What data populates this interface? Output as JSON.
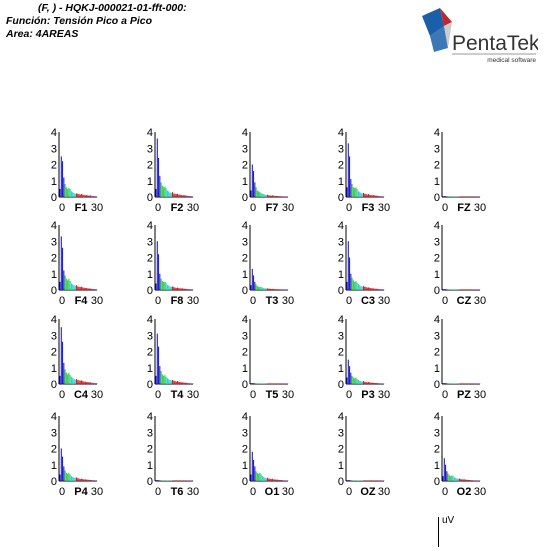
{
  "header": {
    "line1": "(F, ) - HQKJ-000021-01-fft-000:",
    "line2": "Función: Tensión Pico a Pico",
    "line3": "Area: 4AREAS"
  },
  "logo": {
    "name": "PentaTek",
    "tagline": "medical software",
    "colors": {
      "blue": "#1b5fa8",
      "red": "#c0282d",
      "text": "#333333"
    }
  },
  "unit_label": "uV",
  "chart_data": {
    "type": "bar",
    "x_ticks": [
      "0",
      "30"
    ],
    "y_ticks": [
      "0",
      "1",
      "2",
      "3",
      "4"
    ],
    "xlim": [
      0,
      30
    ],
    "ylim": [
      0,
      4
    ],
    "band_colors": {
      "delta": "#1a1acc",
      "theta": "#2ecc40",
      "alpha": "#33cccc",
      "beta": "#cc2222",
      "gamma": "#9933cc"
    },
    "panels": [
      {
        "lead": "F1",
        "values": [
          0.5,
          2.5,
          2.2,
          1.2,
          0.8,
          0.6,
          0.5,
          0.55,
          0.5,
          0.35,
          0.3,
          0.25,
          0.2,
          0.22,
          0.2,
          0.18,
          0.15,
          0.18,
          0.15,
          0.12,
          0.1,
          0.12,
          0.1,
          0.08,
          0.1,
          0.08,
          0.06,
          0.05,
          0.05,
          0.04
        ]
      },
      {
        "lead": "F2",
        "values": [
          0.5,
          3.6,
          2.4,
          1.3,
          0.9,
          0.7,
          0.6,
          0.65,
          0.55,
          0.4,
          0.35,
          0.28,
          0.25,
          0.3,
          0.22,
          0.2,
          0.18,
          0.2,
          0.15,
          0.14,
          0.12,
          0.1,
          0.12,
          0.1,
          0.08,
          0.08,
          0.06,
          0.06,
          0.05,
          0.04
        ]
      },
      {
        "lead": "F7",
        "values": [
          0.4,
          2.0,
          1.6,
          0.9,
          0.6,
          0.4,
          0.35,
          0.3,
          0.25,
          0.2,
          0.18,
          0.15,
          0.12,
          0.14,
          0.1,
          0.1,
          0.08,
          0.1,
          0.08,
          0.07,
          0.06,
          0.06,
          0.05,
          0.05,
          0.04,
          0.04,
          0.03,
          0.03,
          0.03,
          0.02
        ]
      },
      {
        "lead": "F3",
        "values": [
          0.6,
          3.3,
          2.5,
          1.1,
          0.8,
          0.6,
          0.55,
          0.6,
          0.5,
          0.35,
          0.3,
          0.25,
          0.22,
          0.25,
          0.2,
          0.18,
          0.15,
          0.18,
          0.14,
          0.12,
          0.1,
          0.12,
          0.1,
          0.08,
          0.08,
          0.06,
          0.05,
          0.05,
          0.04,
          0.04
        ]
      },
      {
        "lead": "FZ",
        "values": [
          0.05,
          0.06,
          0.05,
          0.04,
          0.04,
          0.03,
          0.03,
          0.03,
          0.03,
          0.02,
          0.02,
          0.02,
          0.02,
          0.02,
          0.02,
          0.02,
          0.02,
          0.02,
          0.02,
          0.02,
          0.02,
          0.02,
          0.02,
          0.02,
          0.02,
          0.02,
          0.02,
          0.02,
          0.02,
          0.02
        ]
      },
      {
        "lead": "F4",
        "values": [
          0.5,
          3.3,
          2.6,
          1.2,
          0.9,
          0.7,
          0.6,
          0.7,
          0.55,
          0.4,
          0.35,
          0.3,
          0.25,
          0.3,
          0.22,
          0.2,
          0.18,
          0.2,
          0.16,
          0.14,
          0.12,
          0.12,
          0.1,
          0.1,
          0.08,
          0.08,
          0.06,
          0.06,
          0.05,
          0.04
        ]
      },
      {
        "lead": "F8",
        "values": [
          0.4,
          3.0,
          2.2,
          1.0,
          0.7,
          0.55,
          0.5,
          0.5,
          0.45,
          0.3,
          0.28,
          0.22,
          0.2,
          0.22,
          0.18,
          0.15,
          0.12,
          0.15,
          0.12,
          0.1,
          0.1,
          0.1,
          0.08,
          0.08,
          0.06,
          0.06,
          0.05,
          0.05,
          0.04,
          0.03
        ]
      },
      {
        "lead": "T3",
        "values": [
          0.3,
          1.3,
          0.9,
          0.5,
          0.35,
          0.25,
          0.2,
          0.2,
          0.18,
          0.15,
          0.12,
          0.1,
          0.1,
          0.1,
          0.08,
          0.08,
          0.06,
          0.07,
          0.06,
          0.05,
          0.05,
          0.05,
          0.04,
          0.04,
          0.04,
          0.03,
          0.03,
          0.03,
          0.02,
          0.02
        ]
      },
      {
        "lead": "C3",
        "values": [
          0.5,
          3.0,
          2.0,
          1.0,
          0.75,
          0.6,
          0.5,
          0.55,
          0.45,
          0.35,
          0.3,
          0.25,
          0.2,
          0.25,
          0.2,
          0.18,
          0.15,
          0.16,
          0.14,
          0.12,
          0.1,
          0.1,
          0.08,
          0.08,
          0.07,
          0.06,
          0.05,
          0.05,
          0.04,
          0.04
        ]
      },
      {
        "lead": "CZ",
        "values": [
          0.05,
          0.06,
          0.05,
          0.04,
          0.04,
          0.03,
          0.03,
          0.03,
          0.03,
          0.02,
          0.02,
          0.02,
          0.02,
          0.02,
          0.02,
          0.02,
          0.02,
          0.02,
          0.02,
          0.02,
          0.02,
          0.02,
          0.02,
          0.02,
          0.02,
          0.02,
          0.02,
          0.02,
          0.02,
          0.02
        ]
      },
      {
        "lead": "C4",
        "values": [
          0.5,
          3.5,
          2.6,
          1.3,
          0.9,
          0.7,
          0.6,
          0.7,
          0.55,
          0.45,
          0.4,
          0.3,
          0.28,
          0.3,
          0.24,
          0.22,
          0.2,
          0.22,
          0.18,
          0.15,
          0.14,
          0.12,
          0.12,
          0.1,
          0.1,
          0.08,
          0.07,
          0.06,
          0.05,
          0.05
        ]
      },
      {
        "lead": "T4",
        "values": [
          0.5,
          3.1,
          2.3,
          1.1,
          0.8,
          0.6,
          0.5,
          0.55,
          0.45,
          0.35,
          0.3,
          0.25,
          0.22,
          0.25,
          0.2,
          0.18,
          0.15,
          0.18,
          0.14,
          0.12,
          0.1,
          0.1,
          0.09,
          0.08,
          0.07,
          0.06,
          0.05,
          0.05,
          0.04,
          0.04
        ]
      },
      {
        "lead": "T5",
        "values": [
          0.05,
          0.06,
          0.05,
          0.04,
          0.04,
          0.03,
          0.03,
          0.03,
          0.03,
          0.02,
          0.02,
          0.02,
          0.02,
          0.02,
          0.02,
          0.02,
          0.02,
          0.02,
          0.02,
          0.02,
          0.02,
          0.02,
          0.02,
          0.02,
          0.02,
          0.02,
          0.02,
          0.02,
          0.02,
          0.02
        ]
      },
      {
        "lead": "P3",
        "values": [
          0.4,
          1.5,
          1.1,
          0.7,
          0.5,
          0.4,
          0.35,
          0.4,
          0.3,
          0.25,
          0.2,
          0.18,
          0.15,
          0.18,
          0.14,
          0.12,
          0.1,
          0.12,
          0.1,
          0.08,
          0.08,
          0.07,
          0.06,
          0.06,
          0.05,
          0.05,
          0.04,
          0.04,
          0.03,
          0.03
        ]
      },
      {
        "lead": "PZ",
        "values": [
          0.05,
          0.06,
          0.05,
          0.04,
          0.04,
          0.03,
          0.03,
          0.03,
          0.03,
          0.02,
          0.02,
          0.02,
          0.02,
          0.02,
          0.02,
          0.02,
          0.02,
          0.02,
          0.02,
          0.02,
          0.02,
          0.02,
          0.02,
          0.02,
          0.02,
          0.02,
          0.02,
          0.02,
          0.02,
          0.02
        ]
      },
      {
        "lead": "P4",
        "values": [
          0.4,
          2.0,
          1.5,
          0.9,
          0.65,
          0.5,
          0.45,
          0.5,
          0.4,
          0.3,
          0.25,
          0.22,
          0.2,
          0.22,
          0.18,
          0.15,
          0.12,
          0.14,
          0.12,
          0.1,
          0.1,
          0.09,
          0.08,
          0.07,
          0.06,
          0.06,
          0.05,
          0.05,
          0.04,
          0.03
        ]
      },
      {
        "lead": "T6",
        "values": [
          0.05,
          0.06,
          0.05,
          0.04,
          0.04,
          0.03,
          0.03,
          0.03,
          0.03,
          0.02,
          0.02,
          0.02,
          0.02,
          0.02,
          0.02,
          0.02,
          0.02,
          0.02,
          0.02,
          0.02,
          0.02,
          0.02,
          0.02,
          0.02,
          0.02,
          0.02,
          0.02,
          0.02,
          0.02,
          0.02
        ]
      },
      {
        "lead": "O1",
        "values": [
          0.4,
          1.8,
          1.3,
          0.9,
          0.6,
          0.5,
          0.45,
          0.5,
          0.4,
          0.3,
          0.25,
          0.2,
          0.18,
          0.2,
          0.15,
          0.14,
          0.12,
          0.14,
          0.1,
          0.1,
          0.08,
          0.08,
          0.07,
          0.06,
          0.06,
          0.05,
          0.04,
          0.04,
          0.03,
          0.03
        ]
      },
      {
        "lead": "OZ",
        "values": [
          0.05,
          0.06,
          0.05,
          0.04,
          0.04,
          0.03,
          0.03,
          0.03,
          0.03,
          0.02,
          0.02,
          0.02,
          0.02,
          0.02,
          0.02,
          0.02,
          0.02,
          0.02,
          0.02,
          0.02,
          0.02,
          0.02,
          0.02,
          0.02,
          0.02,
          0.02,
          0.02,
          0.02,
          0.02,
          0.02
        ]
      },
      {
        "lead": "O2",
        "values": [
          0.3,
          1.4,
          1.0,
          0.6,
          0.45,
          0.35,
          0.3,
          0.35,
          0.3,
          0.22,
          0.2,
          0.16,
          0.14,
          0.15,
          0.12,
          0.1,
          0.1,
          0.1,
          0.08,
          0.08,
          0.06,
          0.06,
          0.05,
          0.05,
          0.04,
          0.04,
          0.03,
          0.03,
          0.03,
          0.02
        ]
      }
    ]
  }
}
